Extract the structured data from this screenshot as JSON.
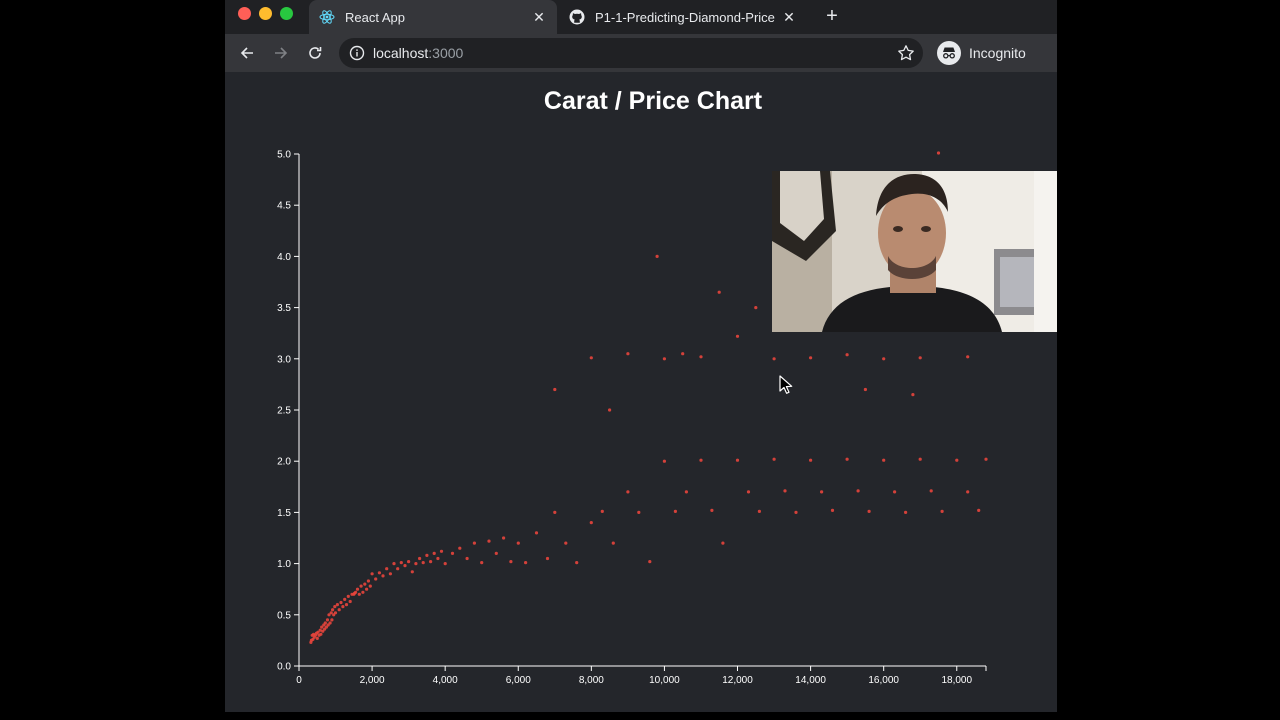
{
  "tabs": [
    {
      "title": "React App",
      "icon": "react-icon",
      "active": true
    },
    {
      "title": "P1-1-Predicting-Diamond-Price",
      "icon": "github-icon",
      "active": false
    }
  ],
  "omnibox": {
    "host": "localhost",
    "port": ":3000"
  },
  "profile": {
    "label": "Incognito"
  },
  "page": {
    "title": "Carat / Price Chart"
  },
  "colors": {
    "accent": "#e8453c",
    "background": "#24262b",
    "axis": "#ffffff"
  },
  "chart_data": {
    "type": "scatter",
    "title": "Carat / Price Chart",
    "xlabel": "",
    "ylabel": "",
    "xlim": [
      0,
      18800
    ],
    "ylim": [
      0,
      5
    ],
    "grid": false,
    "x_ticks": [
      "0",
      "2,000",
      "4,000",
      "6,000",
      "8,000",
      "10,000",
      "12,000",
      "14,000",
      "16,000",
      "18,000"
    ],
    "y_ticks": [
      "0.0",
      "0.5",
      "1.0",
      "1.5",
      "2.0",
      "2.5",
      "3.0",
      "3.5",
      "4.0",
      "4.5",
      "5.0"
    ],
    "series": [
      {
        "color": "#e8453c",
        "points": [
          [
            326,
            0.23
          ],
          [
            340,
            0.25
          ],
          [
            360,
            0.3
          ],
          [
            380,
            0.26
          ],
          [
            400,
            0.31
          ],
          [
            420,
            0.28
          ],
          [
            450,
            0.3
          ],
          [
            480,
            0.32
          ],
          [
            500,
            0.27
          ],
          [
            520,
            0.33
          ],
          [
            550,
            0.3
          ],
          [
            580,
            0.35
          ],
          [
            600,
            0.31
          ],
          [
            620,
            0.38
          ],
          [
            650,
            0.34
          ],
          [
            680,
            0.4
          ],
          [
            700,
            0.36
          ],
          [
            720,
            0.42
          ],
          [
            750,
            0.38
          ],
          [
            780,
            0.45
          ],
          [
            800,
            0.4
          ],
          [
            820,
            0.5
          ],
          [
            850,
            0.42
          ],
          [
            880,
            0.52
          ],
          [
            900,
            0.45
          ],
          [
            920,
            0.55
          ],
          [
            950,
            0.5
          ],
          [
            980,
            0.58
          ],
          [
            1000,
            0.52
          ],
          [
            1050,
            0.6
          ],
          [
            1100,
            0.55
          ],
          [
            1150,
            0.62
          ],
          [
            1200,
            0.58
          ],
          [
            1250,
            0.65
          ],
          [
            1300,
            0.6
          ],
          [
            1350,
            0.68
          ],
          [
            1400,
            0.63
          ],
          [
            1450,
            0.7
          ],
          [
            1500,
            0.7
          ],
          [
            1520,
            0.71
          ],
          [
            1550,
            0.72
          ],
          [
            1600,
            0.75
          ],
          [
            1650,
            0.7
          ],
          [
            1700,
            0.78
          ],
          [
            1750,
            0.72
          ],
          [
            1800,
            0.8
          ],
          [
            1850,
            0.75
          ],
          [
            1900,
            0.83
          ],
          [
            1950,
            0.78
          ],
          [
            2000,
            0.9
          ],
          [
            2100,
            0.85
          ],
          [
            2200,
            0.91
          ],
          [
            2300,
            0.88
          ],
          [
            2400,
            0.95
          ],
          [
            2500,
            0.9
          ],
          [
            2600,
            1.0
          ],
          [
            2700,
            0.95
          ],
          [
            2800,
            1.01
          ],
          [
            2900,
            0.98
          ],
          [
            3000,
            1.02
          ],
          [
            3100,
            0.92
          ],
          [
            3200,
            1.0
          ],
          [
            3300,
            1.05
          ],
          [
            3400,
            1.01
          ],
          [
            3500,
            1.08
          ],
          [
            3600,
            1.02
          ],
          [
            3700,
            1.1
          ],
          [
            3800,
            1.05
          ],
          [
            3900,
            1.12
          ],
          [
            4000,
            1.0
          ],
          [
            4200,
            1.1
          ],
          [
            4400,
            1.15
          ],
          [
            4600,
            1.05
          ],
          [
            4800,
            1.2
          ],
          [
            5000,
            1.01
          ],
          [
            5200,
            1.22
          ],
          [
            5400,
            1.1
          ],
          [
            5600,
            1.25
          ],
          [
            5800,
            1.02
          ],
          [
            6000,
            1.2
          ],
          [
            6200,
            1.01
          ],
          [
            6500,
            1.3
          ],
          [
            6800,
            1.05
          ],
          [
            7000,
            1.5
          ],
          [
            7300,
            1.2
          ],
          [
            7600,
            1.01
          ],
          [
            8000,
            1.4
          ],
          [
            8300,
            1.51
          ],
          [
            8600,
            1.2
          ],
          [
            9000,
            1.7
          ],
          [
            9300,
            1.5
          ],
          [
            9600,
            1.02
          ],
          [
            10000,
            2.0
          ],
          [
            10300,
            1.51
          ],
          [
            10600,
            1.7
          ],
          [
            11000,
            2.01
          ],
          [
            11300,
            1.52
          ],
          [
            11600,
            1.2
          ],
          [
            12000,
            2.01
          ],
          [
            12300,
            1.7
          ],
          [
            12600,
            1.51
          ],
          [
            13000,
            2.02
          ],
          [
            13300,
            1.71
          ],
          [
            13600,
            1.5
          ],
          [
            14000,
            2.01
          ],
          [
            14300,
            1.7
          ],
          [
            14600,
            1.52
          ],
          [
            15000,
            2.02
          ],
          [
            15300,
            1.71
          ],
          [
            15600,
            1.51
          ],
          [
            16000,
            2.01
          ],
          [
            16300,
            1.7
          ],
          [
            16600,
            1.5
          ],
          [
            17000,
            2.02
          ],
          [
            17300,
            1.71
          ],
          [
            17600,
            1.51
          ],
          [
            18000,
            2.01
          ],
          [
            18300,
            1.7
          ],
          [
            18600,
            1.52
          ],
          [
            18800,
            2.02
          ],
          [
            8000,
            3.01
          ],
          [
            9000,
            3.05
          ],
          [
            10000,
            3.0
          ],
          [
            11000,
            3.02
          ],
          [
            12000,
            3.22
          ],
          [
            13000,
            3.0
          ],
          [
            14000,
            3.01
          ],
          [
            15000,
            3.04
          ],
          [
            16000,
            3.0
          ],
          [
            17000,
            3.01
          ],
          [
            18300,
            3.02
          ],
          [
            11500,
            3.65
          ],
          [
            9800,
            4.0
          ],
          [
            17500,
            5.01
          ],
          [
            12500,
            3.5
          ],
          [
            10500,
            3.05
          ],
          [
            7000,
            2.7
          ],
          [
            8500,
            2.5
          ],
          [
            15500,
            2.7
          ],
          [
            16800,
            2.65
          ]
        ]
      }
    ]
  }
}
